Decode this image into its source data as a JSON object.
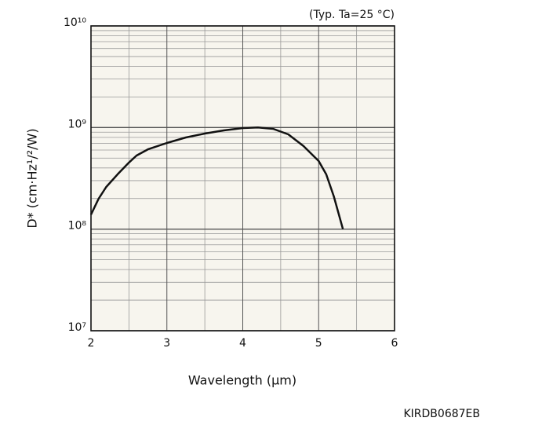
{
  "chart_data": {
    "type": "line",
    "annotation": "(Typ. Ta=25 °C)",
    "code": "KIRDB0687EB",
    "x_label": "Wavelength (μm)",
    "y_label": "D* (cm·Hz¹/²/W)",
    "log_y": true,
    "grid": true,
    "xlim": [
      2,
      6
    ],
    "xticks": [
      2,
      3,
      4,
      5,
      6
    ],
    "xminor": [
      2.5,
      3.5,
      4.5,
      5.5
    ],
    "ylim": [
      10000000,
      10000000000
    ],
    "yticks": [
      {
        "value": 10000000,
        "label": "10⁷"
      },
      {
        "value": 100000000,
        "label": "10⁸"
      },
      {
        "value": 1000000000,
        "label": "10⁹"
      },
      {
        "value": 10000000000,
        "label": "10¹⁰"
      }
    ],
    "yminor": [
      20000000,
      30000000,
      40000000,
      50000000,
      60000000,
      70000000,
      80000000,
      90000000,
      200000000,
      300000000,
      400000000,
      500000000,
      600000000,
      700000000,
      800000000,
      900000000,
      2000000000,
      3000000000,
      4000000000,
      5000000000,
      6000000000,
      7000000000,
      8000000000,
      9000000000
    ],
    "series": [
      {
        "color": "#111111",
        "x": [
          2.0,
          2.1,
          2.2,
          2.35,
          2.5,
          2.6,
          2.75,
          3.0,
          3.25,
          3.5,
          3.75,
          4.0,
          4.2,
          4.4,
          4.6,
          4.8,
          5.0,
          5.1,
          5.2,
          5.32
        ],
        "values": [
          139000000,
          199000000,
          260000000,
          346000000,
          452000000,
          530000000,
          610000000,
          705000000,
          798000000,
          873000000,
          937000000,
          989000000,
          1000000000,
          970000000,
          857000000,
          657000000,
          468000000,
          346000000,
          210000000,
          100000000
        ]
      }
    ]
  }
}
